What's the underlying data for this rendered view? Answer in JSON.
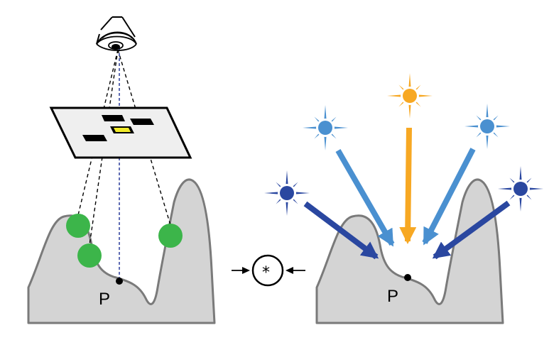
{
  "left_panel": {
    "point_label": "P"
  },
  "operator": {
    "symbol": "*"
  },
  "right_panel": {
    "point_label": "P"
  },
  "colors": {
    "terrain_fill": "#d4d4d4",
    "terrain_stroke": "#7a7a7a",
    "probe_green": "#3cb54a",
    "sun_orange": "#f7a823",
    "light_light_blue": "#4a90d0",
    "light_dark_blue": "#2a47a0",
    "plane_fill": "#efefef",
    "highlight_yellow": "#f0ea2a"
  }
}
